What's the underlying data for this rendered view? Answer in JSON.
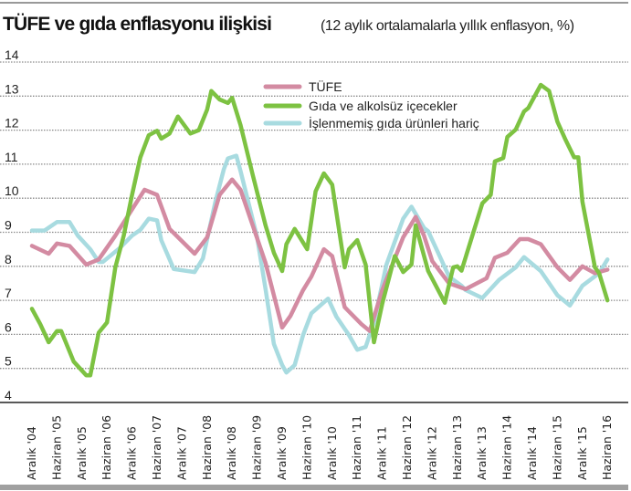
{
  "chart_data": {
    "type": "line",
    "title": "TÜFE ve gıda enflasyonu ilişkisi",
    "subtitle": "(12 aylık ortalamalarla yıllık enflasyon, %)",
    "xlabel": "",
    "ylabel": "",
    "ylim": [
      4,
      14
    ],
    "xlim": [
      "2004-12",
      "2016-06"
    ],
    "yticks": [
      "4",
      "5",
      "6",
      "7",
      "8",
      "9",
      "10",
      "11",
      "12",
      "13",
      "14"
    ],
    "xticks": [
      "Aralık '04",
      "Haziran '05",
      "Aralık '05",
      "Haziran '06",
      "Aralık '06",
      "Haziran '07",
      "Aralık '07",
      "Haziran '08",
      "Aralık '08",
      "Haziran '09",
      "Aralık '09",
      "Haziran '10",
      "Aralık '10",
      "Haziran '11",
      "Aralık '11",
      "Haziran '12",
      "Aralık '12",
      "Haziran '13",
      "Aralık '13",
      "Haziran '14",
      "Aralık '14",
      "Haziran '15",
      "Aralık '15",
      "Haziran '16"
    ],
    "grid": true,
    "legend_position": "top-center",
    "series": [
      {
        "name": "TÜFE",
        "color": "#d38ba2",
        "x": [
          "2004-12",
          "2005-04",
          "2005-06",
          "2005-09",
          "2006-01",
          "2006-04",
          "2006-08",
          "2007-03",
          "2007-06",
          "2007-09",
          "2008-03",
          "2008-06",
          "2008-09",
          "2008-12",
          "2009-02",
          "2009-08",
          "2009-12",
          "2010-02",
          "2010-05",
          "2010-07",
          "2010-10",
          "2010-12",
          "2011-03",
          "2011-07",
          "2011-09",
          "2011-12",
          "2012-05",
          "2012-08",
          "2012-10",
          "2012-12",
          "2013-04",
          "2013-08",
          "2014-01",
          "2014-03",
          "2014-06",
          "2014-09",
          "2014-11",
          "2015-02",
          "2015-06",
          "2015-09",
          "2015-12",
          "2016-03",
          "2016-06"
        ],
        "y": [
          8.6,
          8.37,
          8.67,
          8.6,
          8.05,
          8.2,
          8.9,
          10.25,
          10.1,
          9.1,
          8.37,
          8.85,
          10.1,
          10.55,
          10.25,
          8.1,
          6.2,
          6.55,
          7.3,
          7.7,
          8.5,
          8.3,
          6.8,
          6.3,
          6.1,
          7.3,
          8.85,
          9.45,
          8.9,
          8.15,
          7.5,
          7.33,
          7.65,
          8.25,
          8.4,
          8.8,
          8.8,
          8.65,
          7.97,
          7.6,
          8.0,
          7.8,
          7.9
        ]
      },
      {
        "name": "Gıda ve alkolsüz içecekler",
        "color": "#7dc242",
        "x": [
          "2004-12",
          "2005-02",
          "2005-04",
          "2005-06",
          "2005-07",
          "2005-10",
          "2006-01",
          "2006-02",
          "2006-04",
          "2006-06",
          "2006-08",
          "2006-10",
          "2006-12",
          "2007-02",
          "2007-04",
          "2007-06",
          "2007-07",
          "2007-09",
          "2007-11",
          "2008-02",
          "2008-04",
          "2008-06",
          "2008-07",
          "2008-09",
          "2008-11",
          "2008-12",
          "2009-02",
          "2009-05",
          "2009-08",
          "2009-10",
          "2009-12",
          "2010-01",
          "2010-03",
          "2010-06",
          "2010-08",
          "2010-10",
          "2010-12",
          "2011-03",
          "2011-04",
          "2011-06",
          "2011-08",
          "2011-10",
          "2011-12",
          "2012-03",
          "2012-05",
          "2012-07",
          "2012-08",
          "2012-11",
          "2013-03",
          "2013-05",
          "2013-06",
          "2013-07",
          "2013-12",
          "2014-02",
          "2014-03",
          "2014-05",
          "2014-06",
          "2014-08",
          "2014-10",
          "2014-11",
          "2015-02",
          "2015-04",
          "2015-06",
          "2015-08",
          "2015-10",
          "2015-11",
          "2015-12",
          "2016-03",
          "2016-04",
          "2016-06"
        ],
        "y": [
          6.75,
          6.3,
          5.77,
          6.1,
          6.1,
          5.2,
          4.8,
          4.8,
          6.05,
          6.35,
          7.97,
          8.9,
          10.1,
          11.2,
          11.85,
          11.98,
          11.75,
          11.9,
          12.4,
          11.9,
          12.0,
          12.6,
          13.15,
          12.9,
          12.8,
          12.95,
          12.15,
          10.65,
          9.2,
          8.4,
          7.86,
          8.65,
          9.1,
          8.5,
          10.2,
          10.73,
          10.4,
          7.97,
          8.5,
          8.77,
          8.05,
          5.77,
          6.9,
          8.3,
          7.83,
          8.05,
          9.2,
          7.86,
          6.93,
          7.97,
          8.0,
          7.87,
          9.85,
          10.1,
          11.08,
          11.18,
          11.8,
          12.02,
          12.55,
          12.65,
          13.33,
          13.15,
          12.25,
          11.7,
          11.2,
          11.2,
          9.9,
          7.97,
          7.8,
          7.0
        ]
      },
      {
        "name": "İşlenmemiş gıda ürünleri hariç",
        "color": "#a8dbe0",
        "x": [
          "2004-12",
          "2005-03",
          "2005-06",
          "2005-09",
          "2005-11",
          "2006-02",
          "2006-04",
          "2006-05",
          "2006-09",
          "2006-12",
          "2007-02",
          "2007-04",
          "2007-06",
          "2007-07",
          "2007-10",
          "2008-03",
          "2008-05",
          "2008-08",
          "2008-10",
          "2008-11",
          "2009-01",
          "2009-02",
          "2009-06",
          "2009-08",
          "2009-10",
          "2009-12",
          "2010-01",
          "2010-03",
          "2010-05",
          "2010-07",
          "2010-11",
          "2011-01",
          "2011-04",
          "2011-06",
          "2011-08",
          "2011-10",
          "2012-01",
          "2012-05",
          "2012-07",
          "2012-10",
          "2012-11",
          "2013-01",
          "2013-04",
          "2013-07",
          "2013-08",
          "2013-12",
          "2014-04",
          "2014-08",
          "2014-10",
          "2015-02",
          "2015-06",
          "2015-09",
          "2015-12",
          "2016-04",
          "2016-06"
        ],
        "y": [
          9.05,
          9.05,
          9.3,
          9.3,
          8.9,
          8.5,
          8.13,
          8.13,
          8.53,
          8.9,
          9.07,
          9.4,
          9.35,
          8.77,
          7.92,
          7.83,
          8.23,
          9.9,
          10.85,
          11.17,
          11.25,
          10.8,
          8.85,
          7.33,
          5.72,
          5.1,
          4.88,
          5.1,
          5.98,
          6.62,
          7.05,
          6.52,
          5.98,
          5.55,
          5.63,
          6.35,
          8.05,
          9.4,
          9.75,
          9.13,
          9.03,
          8.5,
          7.7,
          7.43,
          7.3,
          7.07,
          7.6,
          7.97,
          8.27,
          7.86,
          7.15,
          6.85,
          7.43,
          7.8,
          8.2
        ]
      }
    ]
  }
}
